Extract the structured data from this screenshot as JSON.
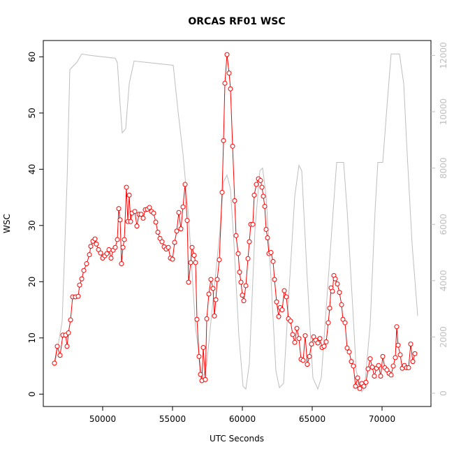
{
  "chart_data": {
    "type": "line",
    "title": "ORCAS RF01 WSC",
    "xlabel": "UTC Seconds",
    "ylabel": "WSC",
    "xlim": [
      45750,
      73500
    ],
    "xticks": [
      50000,
      55000,
      60000,
      65000,
      70000
    ],
    "ylim": [
      -2.2,
      62.9
    ],
    "yticks": [
      0,
      10,
      20,
      30,
      40,
      50,
      60
    ],
    "y2lim": [
      -470,
      12530
    ],
    "y2ticks": [
      0,
      2000,
      4000,
      6000,
      8000,
      10000,
      12000
    ],
    "y2_color": "#bebebe",
    "series": [
      {
        "color": "#bebebe",
        "axis": "y2",
        "markers": false,
        "x": [
          46550,
          47100,
          47450,
          47650,
          48150,
          48500,
          49150,
          50900,
          51050,
          51250,
          51400,
          51650,
          51900,
          52250,
          55050,
          55400,
          55750,
          56150,
          56650,
          57150,
          57450,
          57900,
          58400,
          58650,
          58900,
          59150,
          59400,
          59750,
          60050,
          60250,
          60500,
          60900,
          61250,
          61450,
          61700,
          62050,
          62400,
          62650,
          62950,
          63300,
          63750,
          64050,
          64250,
          64650,
          65050,
          65400,
          65650,
          66150,
          66500,
          66750,
          67250,
          67500,
          67900,
          68150,
          68550,
          68750,
          69150,
          69500,
          69700,
          70050,
          70400,
          70650,
          71250,
          71550,
          71800,
          72150,
          72550
        ],
        "values": [
          950,
          2550,
          7500,
          11500,
          11750,
          12050,
          12000,
          11900,
          11750,
          10250,
          9250,
          9400,
          11000,
          11800,
          11650,
          10000,
          8500,
          6300,
          2300,
          450,
          1050,
          3300,
          5800,
          7500,
          7750,
          7250,
          5300,
          2050,
          250,
          150,
          1050,
          5800,
          7900,
          8000,
          7000,
          4050,
          800,
          200,
          350,
          3300,
          7000,
          8100,
          7900,
          4050,
          550,
          150,
          550,
          4050,
          6500,
          8200,
          8200,
          6500,
          3050,
          800,
          50,
          200,
          2450,
          6500,
          8200,
          8200,
          10500,
          12050,
          12050,
          11000,
          8500,
          5300,
          2750
        ]
      },
      {
        "color": "#ff0000",
        "axis": "y",
        "markers": true,
        "x": [
          46550,
          46750,
          46950,
          47150,
          47350,
          47450,
          47550,
          47700,
          47850,
          48050,
          48250,
          48350,
          48500,
          48650,
          48850,
          49050,
          49150,
          49300,
          49450,
          49550,
          49700,
          49850,
          50000,
          50150,
          50300,
          50450,
          50600,
          50750,
          50900,
          51050,
          51150,
          51250,
          51350,
          51450,
          51550,
          51700,
          51800,
          51900,
          52000,
          52100,
          52300,
          52450,
          52600,
          52750,
          52900,
          53050,
          53200,
          53350,
          53500,
          53650,
          53800,
          53950,
          54100,
          54250,
          54400,
          54550,
          54700,
          54850,
          55000,
          55150,
          55300,
          55450,
          55600,
          55750,
          55900,
          56050,
          56150,
          56300,
          56400,
          56550,
          56650,
          56750,
          56900,
          57000,
          57100,
          57200,
          57350,
          57450,
          57600,
          57750,
          57900,
          58000,
          58100,
          58200,
          58350,
          58550,
          58650,
          58750,
          58900,
          59050,
          59150,
          59300,
          59450,
          59550,
          59700,
          59800,
          59900,
          60000,
          60100,
          60250,
          60400,
          60500,
          60600,
          60750,
          60850,
          61000,
          61150,
          61300,
          61400,
          61500,
          61600,
          61700,
          61800,
          61900,
          62050,
          62200,
          62300,
          62450,
          62600,
          62700,
          62850,
          63000,
          63150,
          63300,
          63450,
          63600,
          63750,
          63900,
          64050,
          64200,
          64350,
          64500,
          64650,
          64800,
          64950,
          65100,
          65250,
          65400,
          65550,
          65700,
          65850,
          66000,
          66150,
          66250,
          66350,
          66450,
          66550,
          66650,
          66800,
          66950,
          67100,
          67200,
          67350,
          67500,
          67650,
          67800,
          67950,
          68100,
          68250,
          68400,
          68550,
          68700,
          68850,
          69000,
          69150,
          69300,
          69450,
          69600,
          69750,
          69900,
          70050,
          70200,
          70350,
          70500,
          70650,
          70800,
          70950,
          71050,
          71150,
          71300,
          71450,
          71600,
          71750,
          71900,
          72050,
          72200,
          72350
        ],
        "values": [
          5.5,
          8.5,
          6.9,
          10.5,
          10.5,
          8.5,
          10.9,
          13.2,
          17.3,
          17.3,
          17.4,
          19.4,
          20.5,
          22.0,
          23.2,
          24.8,
          26.3,
          27.2,
          27.6,
          26.7,
          25.7,
          25.1,
          24.2,
          24.6,
          25.0,
          25.7,
          24.2,
          25.6,
          26.1,
          27.5,
          33.0,
          31.0,
          23.2,
          26.1,
          27.5,
          36.8,
          30.7,
          35.4,
          30.7,
          32.2,
          32.5,
          29.9,
          32.0,
          32.0,
          31.3,
          32.8,
          32.9,
          33.2,
          32.5,
          32.2,
          30.6,
          28.8,
          27.7,
          27.1,
          26.2,
          25.8,
          26.1,
          24.2,
          24.0,
          27.0,
          29.0,
          32.3,
          29.4,
          33.3,
          37.3,
          30.9,
          19.9,
          23.4,
          26.1,
          24.7,
          23.4,
          13.3,
          6.7,
          3.5,
          2.4,
          8.3,
          2.6,
          13.4,
          17.8,
          20.4,
          18.8,
          13.9,
          16.8,
          20.4,
          23.9,
          35.9,
          45.1,
          55.3,
          60.4,
          57.1,
          54.3,
          44.1,
          34.4,
          28.2,
          25.0,
          21.7,
          19.9,
          17.6,
          16.6,
          19.3,
          24.1,
          27.1,
          30.2,
          30.2,
          35.4,
          37.3,
          38.3,
          38.0,
          36.8,
          35.2,
          33.4,
          29.3,
          27.8,
          25.0,
          25.2,
          23.6,
          20.4,
          16.4,
          13.8,
          15.4,
          15.0,
          18.4,
          17.3,
          13.4,
          13.0,
          10.6,
          9.2,
          11.7,
          9.9,
          6.2,
          6.0,
          10.4,
          5.3,
          6.7,
          8.9,
          10.2,
          9.6,
          9.1,
          9.9,
          8.3,
          8.5,
          9.3,
          12.7,
          15.3,
          18.9,
          18.3,
          21.1,
          20.5,
          19.6,
          18.1,
          15.9,
          13.3,
          12.7,
          8.2,
          7.5,
          5.8,
          5.0,
          1.4,
          2.9,
          1.0,
          1.9,
          1.4,
          2.1,
          4.5,
          6.3,
          4.8,
          3.2,
          4.6,
          5.1,
          3.2,
          6.7,
          4.7,
          4.3,
          3.7,
          3.4,
          5.0,
          6.5,
          12.0,
          8.7,
          7.0,
          4.6,
          5.1,
          4.7,
          4.7,
          8.9,
          5.8,
          7.2
        ]
      }
    ]
  }
}
